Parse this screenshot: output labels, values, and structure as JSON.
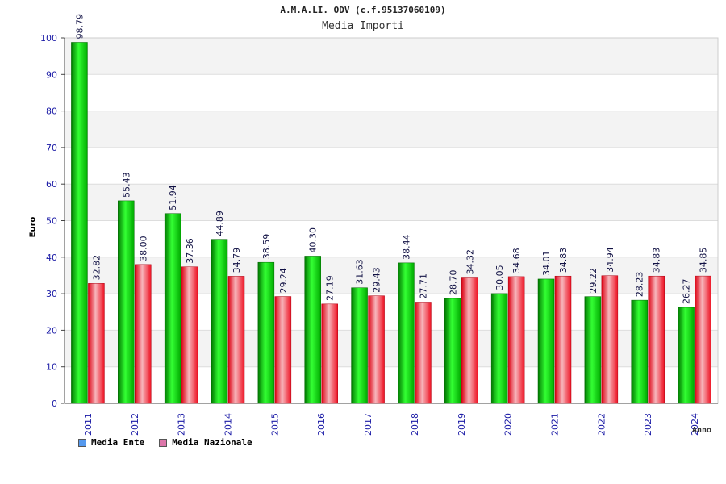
{
  "chart_data": {
    "type": "bar",
    "title": "A.M.A.LI. ODV (c.f.95137060109)",
    "subtitle": "Media Importi",
    "xlabel": "Anno",
    "ylabel": "Euro",
    "ylim": [
      0,
      100
    ],
    "yticks": [
      0,
      10,
      20,
      30,
      40,
      50,
      60,
      70,
      80,
      90,
      100
    ],
    "categories": [
      "2011",
      "2012",
      "2013",
      "2014",
      "2015",
      "2016",
      "2017",
      "2018",
      "2019",
      "2020",
      "2021",
      "2022",
      "2023",
      "2024"
    ],
    "series": [
      {
        "name": "Media Ente",
        "color": "#00cc00",
        "legend_color": "#5599ee",
        "values": [
          98.79,
          55.43,
          51.94,
          44.89,
          38.59,
          40.3,
          31.63,
          38.44,
          28.7,
          30.05,
          34.01,
          29.22,
          28.23,
          26.27
        ],
        "labels": [
          "98.79",
          "55.43",
          "51.94",
          "44.89",
          "38.59",
          "40.30",
          "31.63",
          "38.44",
          "28.70",
          "30.05",
          "34.01",
          "29.22",
          "28.23",
          "26.27"
        ]
      },
      {
        "name": "Media Nazionale",
        "color": "#ee1122",
        "legend_color": "#dd77aa",
        "values": [
          32.82,
          38.0,
          37.36,
          34.79,
          29.24,
          27.19,
          29.43,
          27.71,
          34.32,
          34.68,
          34.83,
          34.94,
          34.83,
          34.85
        ],
        "labels": [
          "32.82",
          "38.00",
          "37.36",
          "34.79",
          "29.24",
          "27.19",
          "29.43",
          "27.71",
          "34.32",
          "34.68",
          "34.83",
          "34.94",
          "34.83",
          "34.85"
        ]
      }
    ],
    "grid": true,
    "legend_position": "bottom-left"
  }
}
